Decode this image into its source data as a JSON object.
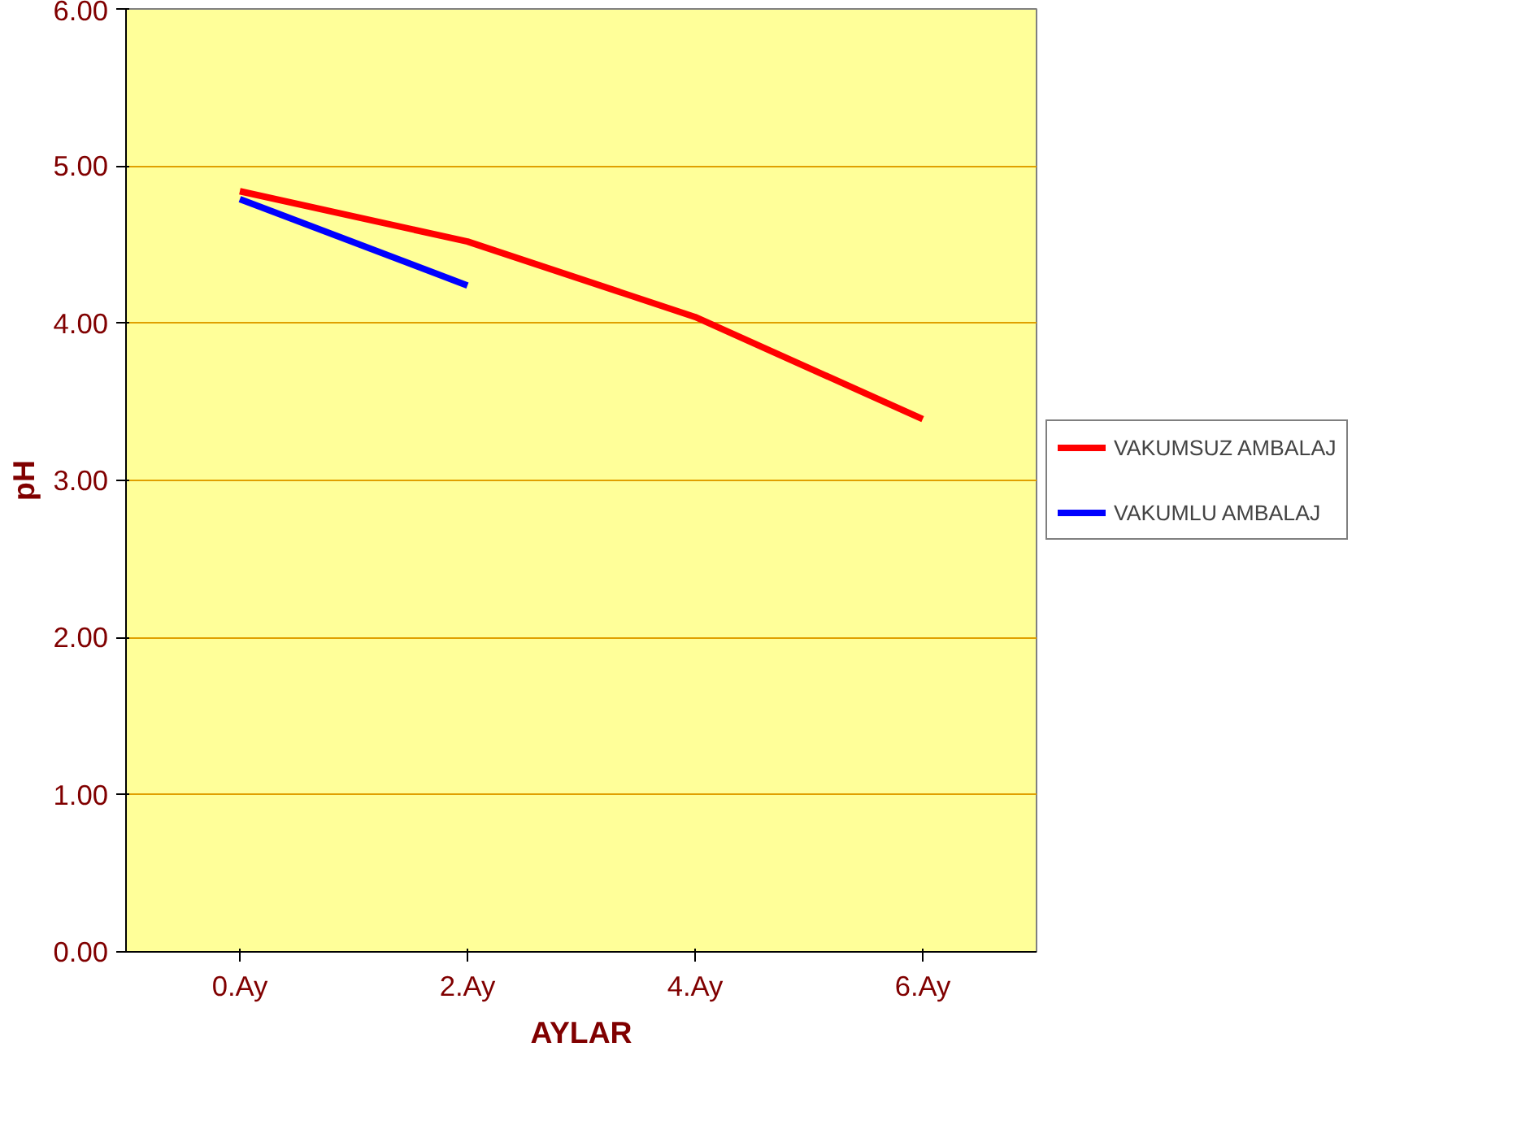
{
  "chart_data": {
    "type": "line",
    "xlabel": "AYLAR",
    "ylabel": "pH",
    "categories": [
      "0.Ay",
      "2.Ay",
      "4.Ay",
      "6.Ay"
    ],
    "series": [
      {
        "name": "VAKUMSUZ AMBALAJ",
        "color": "#ff0000",
        "values": [
          4.84,
          4.52,
          4.04,
          3.39
        ]
      },
      {
        "name": "VAKUMLU AMBALAJ",
        "color": "#0000ff",
        "values": [
          4.79,
          4.24,
          null,
          null
        ]
      }
    ],
    "ylim": [
      0,
      6
    ],
    "yticks": [
      {
        "value": 0,
        "label": "0.00"
      },
      {
        "value": 1,
        "label": "1.00"
      },
      {
        "value": 2,
        "label": "2.00"
      },
      {
        "value": 3,
        "label": "3.00"
      },
      {
        "value": 4,
        "label": "4.00"
      },
      {
        "value": 5,
        "label": "5.00"
      },
      {
        "value": 6,
        "label": "6.00"
      }
    ],
    "grid": "y",
    "legend": "right",
    "marker": "none",
    "line_style": "solid"
  }
}
